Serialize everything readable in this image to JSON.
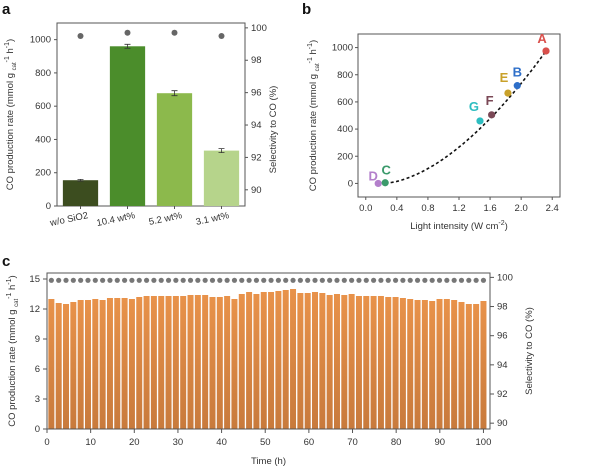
{
  "chart_data": [
    {
      "panel": "a",
      "type": "bar",
      "categories": [
        "w/o SiO2",
        "10.4 wt%",
        "5.2 wt%",
        "3.1 wt%"
      ],
      "values": [
        155,
        960,
        678,
        333
      ],
      "errors": [
        5,
        12,
        15,
        12
      ],
      "bar_colors": [
        "#3c4d1f",
        "#4b8d2b",
        "#8cb94c",
        "#b6d48b"
      ],
      "secondary_series": {
        "name": "Selectivity to CO",
        "type": "scatter",
        "values": [
          99.5,
          99.7,
          99.7,
          99.5
        ],
        "color": "#666666"
      },
      "ylabel": "CO production rate (mmol g cat-1 h-1)",
      "y2label": "Selectivity to CO (%)",
      "ylim": [
        0,
        1100
      ],
      "yticks": [
        "0",
        "200",
        "400",
        "600",
        "800",
        "1000"
      ],
      "y2lim": [
        89,
        100.3
      ],
      "y2ticks": [
        "90",
        "92",
        "94",
        "96",
        "98",
        "100"
      ]
    },
    {
      "panel": "b",
      "type": "scatter",
      "points": [
        {
          "label": "A",
          "x": 2.32,
          "y": 975,
          "color": "#d9504c"
        },
        {
          "label": "B",
          "x": 1.95,
          "y": 720,
          "color": "#2e6fc9"
        },
        {
          "label": "E",
          "x": 1.83,
          "y": 665,
          "color": "#c9a12a"
        },
        {
          "label": "F",
          "x": 1.62,
          "y": 505,
          "color": "#7a4856"
        },
        {
          "label": "G",
          "x": 1.47,
          "y": 460,
          "color": "#2dbdc0"
        },
        {
          "label": "D",
          "x": 0.16,
          "y": 0,
          "color": "#b37fcb"
        },
        {
          "label": "C",
          "x": 0.25,
          "y": 5,
          "color": "#3b9a6b"
        }
      ],
      "fit": "dashed power-law trend line",
      "xlabel": "Light intensity (W cm-2)",
      "ylabel": "CO production rate (mmol g cat-1 h-1)",
      "xlim": [
        -0.1,
        2.5
      ],
      "ylim": [
        -100,
        1100
      ],
      "xticks": [
        "0.0",
        "0.4",
        "0.8",
        "1.2",
        "1.6",
        "2.0",
        "2.4"
      ],
      "yticks": [
        "0",
        "200",
        "400",
        "600",
        "800",
        "1000"
      ]
    },
    {
      "panel": "c",
      "type": "bar",
      "xlabel": "Time (h)",
      "ylabel": "CO production rate (mmol g cat-1 h-1)",
      "y2label": "Selectivity to CO (%)",
      "xlim": [
        0,
        101.5
      ],
      "ylim": [
        0,
        15.6
      ],
      "y2lim": [
        89.6,
        100.3
      ],
      "xticks": [
        "0",
        "10",
        "20",
        "30",
        "40",
        "50",
        "60",
        "70",
        "80",
        "90",
        "100"
      ],
      "yticks": [
        "0",
        "3",
        "6",
        "9",
        "12",
        "15"
      ],
      "y2ticks": [
        "90",
        "92",
        "94",
        "96",
        "98",
        "100"
      ],
      "bar_color": "#e8924a",
      "values": [
        13.0,
        12.6,
        12.5,
        12.7,
        12.9,
        12.9,
        13.0,
        12.9,
        13.1,
        13.1,
        13.1,
        13.0,
        13.2,
        13.3,
        13.3,
        13.3,
        13.3,
        13.3,
        13.3,
        13.4,
        13.4,
        13.4,
        13.2,
        13.2,
        13.3,
        13.0,
        13.5,
        13.7,
        13.5,
        13.7,
        13.7,
        13.8,
        13.9,
        14.0,
        13.6,
        13.6,
        13.7,
        13.6,
        13.4,
        13.5,
        13.4,
        13.5,
        13.3,
        13.3,
        13.3,
        13.3,
        13.2,
        13.2,
        13.1,
        13.0,
        12.9,
        12.9,
        12.8,
        13.0,
        13.0,
        12.9,
        12.7,
        12.5,
        12.5,
        12.8
      ],
      "time_start": 1,
      "time_end": 100,
      "selectivity": 99.8
    }
  ],
  "labels": {
    "panel_a": "a",
    "panel_b": "b",
    "panel_c": "c",
    "ylabel_rate": "CO production rate (mmol g",
    "ylabel_sup": "−1",
    "ylabel_sub": "cat",
    "ylabel_h": " h",
    "y2label": "Selectivity to CO (%)",
    "xlabel_b": "Light intensity (W cm",
    "xlabel_b_sup": "−2",
    "xlabel_c": "Time (h)"
  }
}
